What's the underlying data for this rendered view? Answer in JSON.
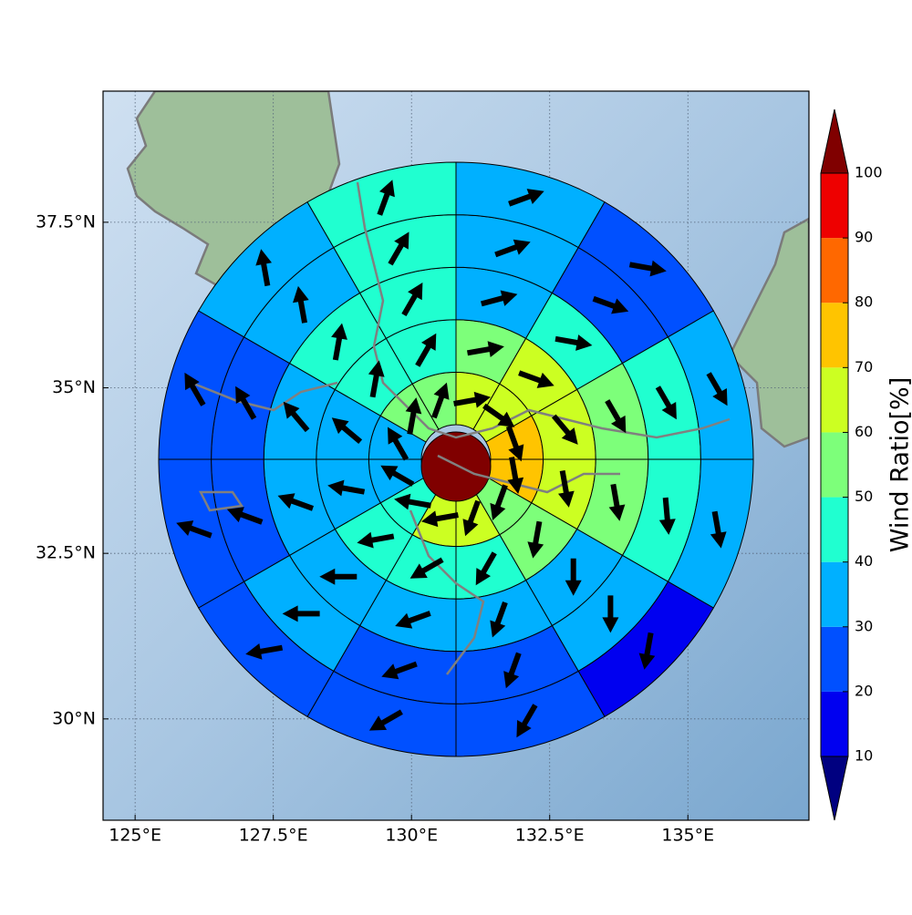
{
  "chart_data": {
    "type": "polar_sector_map",
    "xlim": [
      124.42,
      137.19
    ],
    "xticks": [
      {
        "value": 125,
        "label": "125°E"
      },
      {
        "value": 127.5,
        "label": "127.5°E"
      },
      {
        "value": 130,
        "label": "130°E"
      },
      {
        "value": 132.5,
        "label": "132.5°E"
      },
      {
        "value": 135,
        "label": "135°E"
      }
    ],
    "ylim": [
      28.47,
      39.48
    ],
    "yticks": [
      {
        "value": 30,
        "label": "30°N"
      },
      {
        "value": 32.5,
        "label": "32.5°N"
      },
      {
        "value": 35,
        "label": "35°N"
      },
      {
        "value": 37.5,
        "label": "37.5°N"
      }
    ],
    "grid": true,
    "center_value": 100,
    "arrow_color": "#000000",
    "rings": [
      {
        "values": [
          65,
          65,
          75,
          75,
          55,
          65,
          65,
          45,
          35,
          35,
          55,
          55
        ],
        "directions": [
          80,
          125,
          160,
          170,
          200,
          200,
          260,
          280,
          300,
          330,
          10,
          20
        ]
      },
      {
        "values": [
          55,
          65,
          65,
          65,
          55,
          45,
          45,
          45,
          35,
          35,
          45,
          45
        ],
        "directions": [
          80,
          110,
          140,
          170,
          190,
          210,
          240,
          260,
          280,
          310,
          10,
          30
        ]
      },
      {
        "values": [
          35,
          45,
          55,
          55,
          35,
          35,
          35,
          35,
          35,
          35,
          45,
          45
        ],
        "directions": [
          75,
          100,
          150,
          170,
          180,
          200,
          250,
          270,
          290,
          320,
          10,
          30
        ]
      },
      {
        "values": [
          35,
          25,
          45,
          45,
          35,
          25,
          25,
          35,
          25,
          25,
          35,
          45
        ],
        "directions": [
          70,
          110,
          150,
          175,
          180,
          200,
          250,
          270,
          290,
          330,
          350,
          30
        ]
      },
      {
        "values": [
          35,
          25,
          35,
          35,
          15,
          25,
          25,
          25,
          25,
          25,
          35,
          45
        ],
        "directions": [
          70,
          100,
          150,
          170,
          190,
          210,
          240,
          260,
          290,
          330,
          350,
          20
        ]
      }
    ],
    "colorbar": {
      "label": "Wind Ratio[%]",
      "ticks": [
        10,
        20,
        30,
        40,
        50,
        60,
        70,
        80,
        90,
        100
      ],
      "colors": [
        "#0000f0",
        "#0050ff",
        "#00b0ff",
        "#20ffd0",
        "#7dff7a",
        "#ccff22",
        "#ffc400",
        "#ff6800",
        "#ee0000"
      ],
      "under_color": "#000080",
      "over_color": "#800000"
    }
  }
}
